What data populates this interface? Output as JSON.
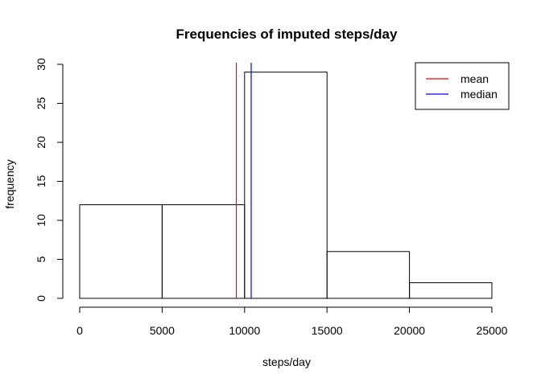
{
  "chart_data": {
    "type": "bar",
    "title": "Frequencies of imputed steps/day",
    "xlabel": "steps/day",
    "ylabel": "frequency",
    "bins": [
      {
        "from": 0,
        "to": 5000,
        "count": 12
      },
      {
        "from": 5000,
        "to": 10000,
        "count": 12
      },
      {
        "from": 10000,
        "to": 15000,
        "count": 29
      },
      {
        "from": 15000,
        "to": 20000,
        "count": 6
      },
      {
        "from": 20000,
        "to": 25000,
        "count": 2
      }
    ],
    "xlim": [
      0,
      25000
    ],
    "ylim": [
      0,
      30
    ],
    "x_ticks": [
      0,
      5000,
      10000,
      15000,
      20000,
      25000
    ],
    "y_ticks": [
      0,
      5,
      10,
      15,
      20,
      25,
      30
    ],
    "reference_lines": [
      {
        "name": "mean",
        "value": 9500,
        "color": "#ff0000"
      },
      {
        "name": "median",
        "value": 10400,
        "color": "#0000ff"
      }
    ],
    "legend": {
      "position": "top-right",
      "entries": [
        {
          "label": "mean",
          "color": "#ff0000"
        },
        {
          "label": "median",
          "color": "#0000ff"
        }
      ]
    },
    "grid": false
  }
}
